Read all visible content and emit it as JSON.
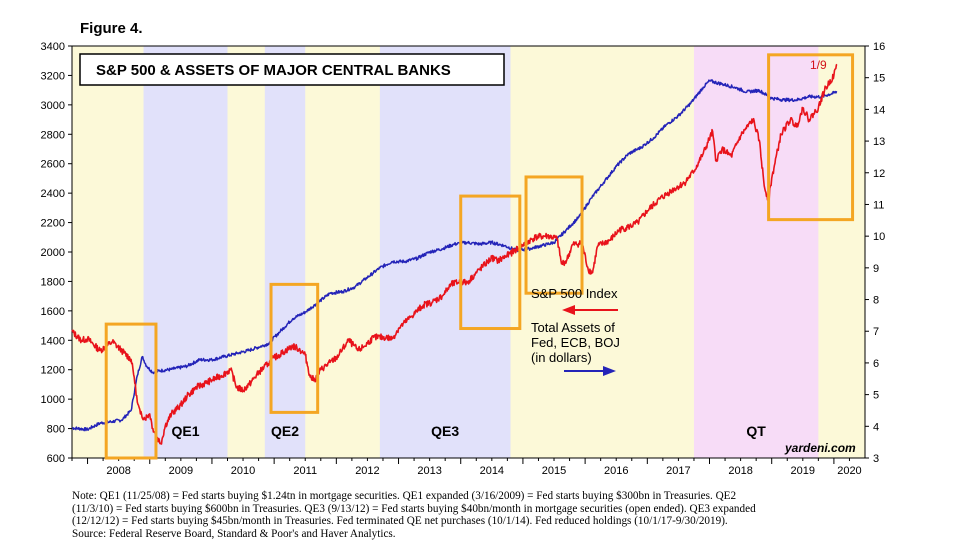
{
  "figure_label": "Figure 4.",
  "colors": {
    "shade_yellow": "#fcf9d8",
    "shade_blue": "#e1e1fa",
    "shade_pink": "#f7dcf7",
    "sp500_line": "#e8131b",
    "assets_line": "#2424b8",
    "highlight_box": "#f4a623"
  },
  "chart_data": {
    "type": "line",
    "title": "S&P 500 & ASSETS OF MAJOR CENTRAL BANKS",
    "x_range": [
      2007.75,
      2020.5
    ],
    "years": [
      "2008",
      "2009",
      "2010",
      "2011",
      "2012",
      "2013",
      "2014",
      "2015",
      "2016",
      "2017",
      "2018",
      "2019",
      "2020"
    ],
    "left_axis": {
      "ylim": [
        600,
        3400
      ],
      "ticks": [
        600,
        800,
        1000,
        1200,
        1400,
        1600,
        1800,
        2000,
        2200,
        2400,
        2600,
        2800,
        3000,
        3200,
        3400
      ]
    },
    "right_axis": {
      "ylim": [
        3,
        16
      ],
      "ticks": [
        3,
        4,
        5,
        6,
        7,
        8,
        9,
        10,
        11,
        12,
        13,
        14,
        15,
        16
      ]
    },
    "periods": [
      {
        "start": 2008.9,
        "end": 2010.25,
        "color": "blue",
        "label": "QE1"
      },
      {
        "start": 2010.85,
        "end": 2011.5,
        "color": "blue",
        "label": "QE2"
      },
      {
        "start": 2012.7,
        "end": 2014.8,
        "color": "blue",
        "label": "QE3"
      },
      {
        "start": 2017.75,
        "end": 2019.75,
        "color": "pink",
        "label": "QT"
      }
    ],
    "series": [
      {
        "name": "S&P 500 Index",
        "axis": "left",
        "noise": 22,
        "points": [
          [
            2007.75,
            1460
          ],
          [
            2007.9,
            1400
          ],
          [
            2008.0,
            1410
          ],
          [
            2008.2,
            1330
          ],
          [
            2008.4,
            1390
          ],
          [
            2008.55,
            1330
          ],
          [
            2008.7,
            1270
          ],
          [
            2008.75,
            1150
          ],
          [
            2008.8,
            980
          ],
          [
            2008.85,
            900
          ],
          [
            2008.92,
            870
          ],
          [
            2009.0,
            900
          ],
          [
            2009.05,
            800
          ],
          [
            2009.12,
            740
          ],
          [
            2009.18,
            700
          ],
          [
            2009.25,
            820
          ],
          [
            2009.35,
            900
          ],
          [
            2009.5,
            960
          ],
          [
            2009.6,
            1020
          ],
          [
            2009.75,
            1080
          ],
          [
            2009.9,
            1110
          ],
          [
            2010.0,
            1130
          ],
          [
            2010.15,
            1160
          ],
          [
            2010.3,
            1200
          ],
          [
            2010.4,
            1080
          ],
          [
            2010.5,
            1060
          ],
          [
            2010.6,
            1100
          ],
          [
            2010.75,
            1180
          ],
          [
            2010.9,
            1240
          ],
          [
            2011.0,
            1280
          ],
          [
            2011.15,
            1320
          ],
          [
            2011.3,
            1360
          ],
          [
            2011.4,
            1340
          ],
          [
            2011.5,
            1300
          ],
          [
            2011.58,
            1150
          ],
          [
            2011.65,
            1130
          ],
          [
            2011.75,
            1200
          ],
          [
            2011.9,
            1250
          ],
          [
            2012.0,
            1280
          ],
          [
            2012.2,
            1400
          ],
          [
            2012.35,
            1330
          ],
          [
            2012.45,
            1360
          ],
          [
            2012.6,
            1420
          ],
          [
            2012.8,
            1420
          ],
          [
            2012.9,
            1410
          ],
          [
            2013.0,
            1480
          ],
          [
            2013.2,
            1560
          ],
          [
            2013.4,
            1640
          ],
          [
            2013.55,
            1660
          ],
          [
            2013.7,
            1700
          ],
          [
            2013.85,
            1780
          ],
          [
            2014.0,
            1800
          ],
          [
            2014.1,
            1790
          ],
          [
            2014.3,
            1880
          ],
          [
            2014.5,
            1960
          ],
          [
            2014.6,
            1940
          ],
          [
            2014.8,
            1990
          ],
          [
            2015.0,
            2050
          ],
          [
            2015.2,
            2100
          ],
          [
            2015.4,
            2110
          ],
          [
            2015.55,
            2090
          ],
          [
            2015.62,
            1920
          ],
          [
            2015.7,
            1940
          ],
          [
            2015.8,
            2050
          ],
          [
            2015.95,
            2060
          ],
          [
            2016.05,
            1880
          ],
          [
            2016.12,
            1860
          ],
          [
            2016.2,
            2040
          ],
          [
            2016.4,
            2080
          ],
          [
            2016.55,
            2150
          ],
          [
            2016.7,
            2170
          ],
          [
            2016.85,
            2200
          ],
          [
            2017.0,
            2280
          ],
          [
            2017.2,
            2360
          ],
          [
            2017.4,
            2420
          ],
          [
            2017.6,
            2470
          ],
          [
            2017.75,
            2550
          ],
          [
            2017.9,
            2670
          ],
          [
            2018.05,
            2820
          ],
          [
            2018.1,
            2620
          ],
          [
            2018.2,
            2700
          ],
          [
            2018.35,
            2650
          ],
          [
            2018.5,
            2790
          ],
          [
            2018.7,
            2900
          ],
          [
            2018.8,
            2760
          ],
          [
            2018.88,
            2450
          ],
          [
            2018.95,
            2350
          ],
          [
            2019.0,
            2500
          ],
          [
            2019.15,
            2800
          ],
          [
            2019.3,
            2900
          ],
          [
            2019.4,
            2850
          ],
          [
            2019.5,
            2980
          ],
          [
            2019.6,
            2900
          ],
          [
            2019.75,
            2980
          ],
          [
            2019.85,
            3100
          ],
          [
            2020.0,
            3200
          ],
          [
            2020.05,
            3275
          ]
        ]
      },
      {
        "name": "Total Assets of Fed, ECB, BOJ (in dollars)",
        "axis": "right",
        "noise": 0.05,
        "points": [
          [
            2007.75,
            3.95
          ],
          [
            2008.0,
            3.9
          ],
          [
            2008.2,
            4.1
          ],
          [
            2008.4,
            4.15
          ],
          [
            2008.55,
            4.2
          ],
          [
            2008.7,
            4.5
          ],
          [
            2008.8,
            5.6
          ],
          [
            2008.88,
            6.2
          ],
          [
            2008.95,
            5.9
          ],
          [
            2009.05,
            5.7
          ],
          [
            2009.15,
            5.75
          ],
          [
            2009.35,
            5.8
          ],
          [
            2009.6,
            5.9
          ],
          [
            2009.8,
            6.1
          ],
          [
            2010.0,
            6.1
          ],
          [
            2010.2,
            6.2
          ],
          [
            2010.4,
            6.3
          ],
          [
            2010.6,
            6.4
          ],
          [
            2010.9,
            6.6
          ],
          [
            2011.1,
            7.0
          ],
          [
            2011.3,
            7.4
          ],
          [
            2011.5,
            7.6
          ],
          [
            2011.7,
            7.9
          ],
          [
            2011.9,
            8.2
          ],
          [
            2012.1,
            8.25
          ],
          [
            2012.3,
            8.4
          ],
          [
            2012.5,
            8.7
          ],
          [
            2012.7,
            9.0
          ],
          [
            2012.9,
            9.2
          ],
          [
            2013.1,
            9.2
          ],
          [
            2013.3,
            9.3
          ],
          [
            2013.5,
            9.5
          ],
          [
            2013.7,
            9.6
          ],
          [
            2013.9,
            9.75
          ],
          [
            2014.1,
            9.8
          ],
          [
            2014.3,
            9.75
          ],
          [
            2014.5,
            9.8
          ],
          [
            2014.7,
            9.7
          ],
          [
            2014.9,
            9.55
          ],
          [
            2015.1,
            9.6
          ],
          [
            2015.3,
            9.7
          ],
          [
            2015.5,
            9.8
          ],
          [
            2015.7,
            10.2
          ],
          [
            2015.9,
            10.6
          ],
          [
            2016.1,
            11.2
          ],
          [
            2016.3,
            11.7
          ],
          [
            2016.5,
            12.2
          ],
          [
            2016.7,
            12.6
          ],
          [
            2016.9,
            12.8
          ],
          [
            2017.1,
            13.1
          ],
          [
            2017.3,
            13.5
          ],
          [
            2017.5,
            13.8
          ],
          [
            2017.7,
            14.2
          ],
          [
            2017.9,
            14.7
          ],
          [
            2018.0,
            14.9
          ],
          [
            2018.2,
            14.8
          ],
          [
            2018.4,
            14.7
          ],
          [
            2018.6,
            14.55
          ],
          [
            2018.8,
            14.6
          ],
          [
            2019.0,
            14.35
          ],
          [
            2019.2,
            14.3
          ],
          [
            2019.4,
            14.3
          ],
          [
            2019.6,
            14.4
          ],
          [
            2019.8,
            14.4
          ],
          [
            2020.05,
            14.55
          ]
        ]
      }
    ],
    "annotations": {
      "date_label": "1/9",
      "sp500_legend": "S&P 500 Index",
      "assets_legend": [
        "Total Assets of",
        "Fed, ECB, BOJ",
        "(in dollars)"
      ],
      "watermark": "yardeni.com"
    },
    "highlight_boxes": [
      {
        "x": [
          2008.3,
          2009.1
        ],
        "y_left": [
          600,
          1510
        ]
      },
      {
        "x": [
          2010.95,
          2011.7
        ],
        "y_left": [
          910,
          1780
        ]
      },
      {
        "x": [
          2014.0,
          2014.95
        ],
        "y_left": [
          1480,
          2380
        ]
      },
      {
        "x": [
          2015.05,
          2015.95
        ],
        "y_left": [
          1720,
          2510
        ]
      },
      {
        "x": [
          2018.95,
          2020.3
        ],
        "y_left": [
          2220,
          3340
        ]
      }
    ]
  },
  "note": {
    "lines": [
      "Note: QE1 (11/25/08) = Fed starts buying $1.24tn in mortgage securities. QE1 expanded (3/16/2009) = Fed starts buying $300bn in Treasuries. QE2",
      "(11/3/10) = Fed starts buying $600bn in Treasuries. QE3 (9/13/12) = Fed starts buying $40bn/month in mortgage securities (open ended). QE3 expanded",
      "(12/12/12) = Fed starts buying $45bn/month in Treasuries. Fed terminated QE net purchases (10/1/14). Fed reduced holdings (10/1/17-9/30/2019).",
      "Source: Federal Reserve Board, Standard & Poor's and Haver Analytics."
    ]
  }
}
